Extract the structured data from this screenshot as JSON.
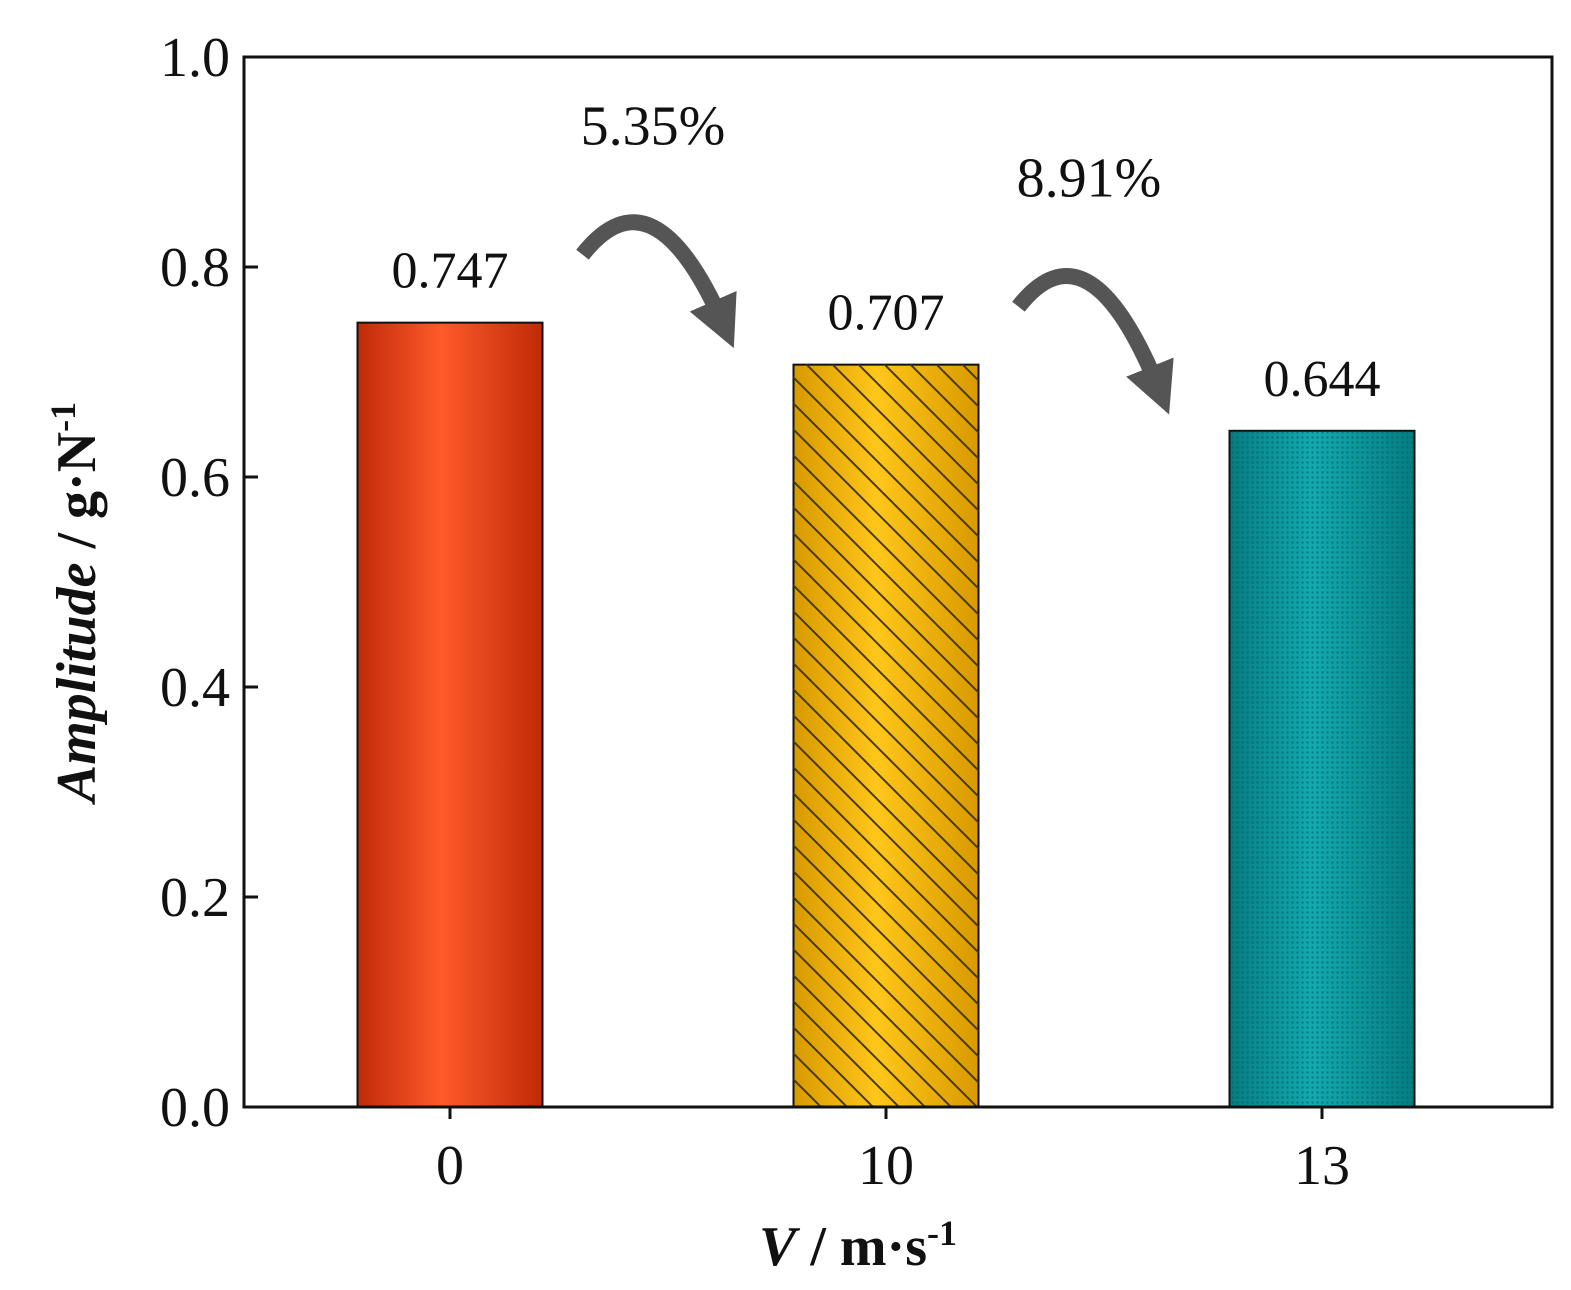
{
  "chart_data": {
    "type": "bar",
    "categories": [
      "0",
      "10",
      "13"
    ],
    "values": [
      0.747,
      0.707,
      0.644
    ],
    "value_labels": [
      "0.747",
      "0.707",
      "0.644"
    ],
    "bar_colors": [
      "#e8431a",
      "#f5b800",
      "#0a9aa0"
    ],
    "bar_patterns": [
      "gradient",
      "hatch",
      "dots"
    ],
    "title": "",
    "xlabel": {
      "var": "V",
      "unit": " / m·s",
      "sup": "-1"
    },
    "ylabel": {
      "var": "Amplitude",
      "unit": " / g·N",
      "sup": "-1"
    },
    "ylim": [
      0,
      1.0
    ],
    "yticks": [
      0.0,
      0.2,
      0.4,
      0.6,
      0.8,
      1.0
    ],
    "ytick_labels": [
      "0.0",
      "0.2",
      "0.4",
      "0.6",
      "0.8",
      "1.0"
    ],
    "grid": false,
    "legend": "none",
    "annotations": [
      {
        "text": "5.35%",
        "from": 0,
        "to": 1
      },
      {
        "text": "8.91%",
        "from": 1,
        "to": 2
      }
    ],
    "arrow_color": "#555555"
  }
}
